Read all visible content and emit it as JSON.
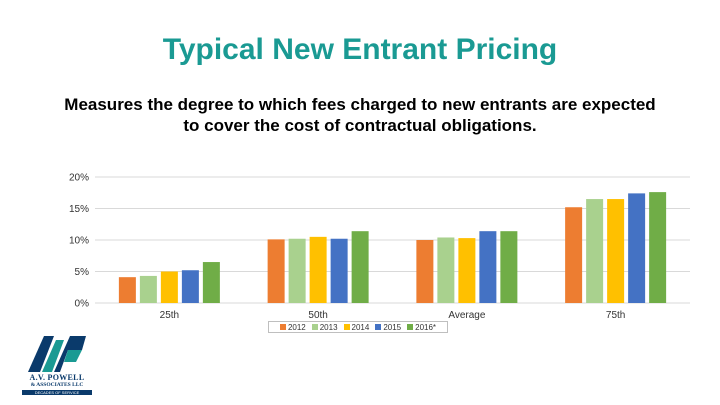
{
  "slide": {
    "title": "Typical New Entrant Pricing",
    "subtitle": "Measures the degree to which fees charged to new entrants are expected to cover the cost of contractual obligations."
  },
  "logo": {
    "name": "A.V. POWELL",
    "line2": "& ASSOCIATES LLC",
    "tagline": "DECADES OF SERVICE"
  },
  "chart_data": {
    "type": "bar",
    "categories": [
      "25th",
      "50th",
      "Average",
      "75th"
    ],
    "series": [
      {
        "name": "2012",
        "color": "#ed7d31",
        "values": [
          4.1,
          10.1,
          10.0,
          15.2
        ]
      },
      {
        "name": "2013",
        "color": "#a9d18e",
        "values": [
          4.3,
          10.2,
          10.4,
          16.5
        ]
      },
      {
        "name": "2014",
        "color": "#ffc000",
        "values": [
          5.0,
          10.5,
          10.3,
          16.5
        ]
      },
      {
        "name": "2015",
        "color": "#4472c4",
        "values": [
          5.2,
          10.2,
          11.4,
          17.4
        ]
      },
      {
        "name": "2016*",
        "color": "#70ad47",
        "values": [
          6.5,
          11.4,
          11.4,
          17.6
        ]
      }
    ],
    "yticks": [
      "0%",
      "5%",
      "10%",
      "15%",
      "20%"
    ],
    "ylim": [
      0,
      20
    ],
    "grid": true,
    "legend": "bottom",
    "xlabel": "",
    "ylabel": ""
  }
}
